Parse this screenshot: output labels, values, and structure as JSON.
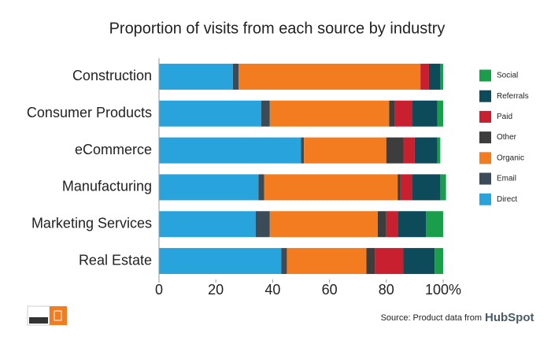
{
  "chart_data": {
    "type": "stacked-bar-horizontal",
    "title": "Proportion of visits from each source by industry",
    "categories": [
      "Construction",
      "Consumer Products",
      "eCommerce",
      "Manufacturing",
      "Marketing Services",
      "Real Estate"
    ],
    "series": [
      {
        "name": "Direct",
        "color": "#29a3dc",
        "values": [
          26,
          36,
          50,
          35,
          34,
          43
        ]
      },
      {
        "name": "Email",
        "color": "#3b4c58",
        "values": [
          2,
          3,
          1,
          2,
          5,
          2
        ]
      },
      {
        "name": "Organic",
        "color": "#f47c20",
        "values": [
          64,
          42,
          29,
          47,
          38,
          28
        ]
      },
      {
        "name": "Other",
        "color": "#3d3d3d",
        "values": [
          0,
          2,
          6,
          1,
          3,
          3
        ]
      },
      {
        "name": "Paid",
        "color": "#c8202f",
        "values": [
          3,
          6,
          4,
          4,
          4,
          10
        ]
      },
      {
        "name": "Referrals",
        "color": "#0d4a5a",
        "values": [
          4,
          9,
          8,
          10,
          10,
          11
        ]
      },
      {
        "name": "Social",
        "color": "#1a9e4b",
        "values": [
          1,
          2,
          1,
          2,
          6,
          3
        ]
      }
    ],
    "xlim": [
      0,
      100
    ],
    "xticks": [
      0,
      20,
      40,
      60,
      80,
      {
        "value": 100,
        "label": "100%"
      }
    ],
    "legend": "right",
    "source": "Source: Product data from",
    "brand": "HubSpot"
  }
}
